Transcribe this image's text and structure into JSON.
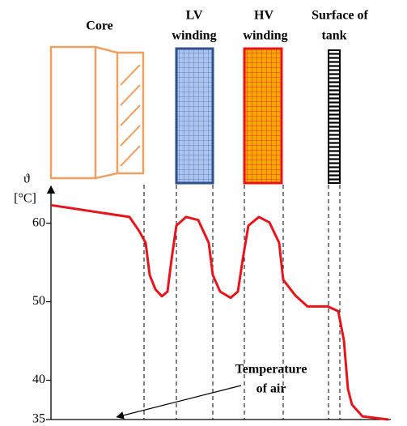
{
  "chart_data": {
    "type": "line",
    "y_label_symbol": "ϑ",
    "y_label_unit": "[°C]",
    "x": [
      0,
      97,
      109,
      117,
      122,
      129,
      137,
      144,
      149,
      155,
      167,
      182,
      195,
      200,
      209,
      222,
      231,
      237,
      244,
      257,
      270,
      282,
      287,
      302,
      317,
      342,
      355,
      362,
      367,
      372,
      385,
      417
    ],
    "series": [
      {
        "color": "#e8141b",
        "values": [
          62.3,
          60.8,
          59.0,
          57.5,
          53.4,
          51.6,
          50.7,
          51.3,
          55.4,
          59.7,
          60.8,
          60.4,
          57.5,
          53.4,
          51.3,
          50.5,
          51.3,
          55.4,
          59.7,
          60.8,
          60.1,
          57.5,
          52.8,
          50.8,
          49.4,
          49.4,
          48.8,
          45.1,
          38.9,
          36.9,
          35.4,
          35
        ]
      }
    ],
    "xlim": [
      0,
      420
    ],
    "ylim": [
      35,
      64.5
    ],
    "yticks": [
      35,
      40,
      50,
      60
    ]
  },
  "components": [
    {
      "lines": [
        "Core"
      ]
    },
    {
      "lines": [
        "LV",
        "winding"
      ]
    },
    {
      "lines": [
        "HV",
        "winding"
      ]
    },
    {
      "lines": [
        "Surface of",
        "tank"
      ]
    }
  ],
  "annotation": {
    "lines": [
      "Temperature",
      "of air"
    ]
  }
}
